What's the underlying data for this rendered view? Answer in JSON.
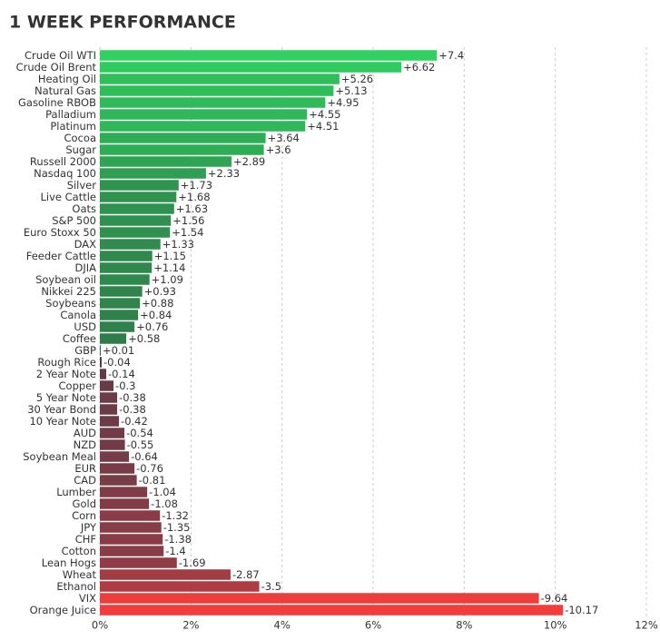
{
  "chart_data": {
    "type": "bar",
    "orientation": "horizontal",
    "title": "1 WEEK PERFORMANCE",
    "categories": [
      "Crude Oil WTI",
      "Crude Oil Brent",
      "Heating Oil",
      "Natural Gas",
      "Gasoline RBOB",
      "Palladium",
      "Platinum",
      "Cocoa",
      "Sugar",
      "Russell 2000",
      "Nasdaq 100",
      "Silver",
      "Live Cattle",
      "Oats",
      "S&P 500",
      "Euro Stoxx 50",
      "DAX",
      "Feeder Cattle",
      "DJIA",
      "Soybean oil",
      "Nikkei 225",
      "Soybeans",
      "Canola",
      "USD",
      "Coffee",
      "GBP",
      "Rough Rice",
      "2 Year Note",
      "Copper",
      "5 Year Note",
      "30 Year Bond",
      "10 Year Note",
      "AUD",
      "NZD",
      "Soybean Meal",
      "EUR",
      "CAD",
      "Lumber",
      "Gold",
      "Corn",
      "JPY",
      "CHF",
      "Cotton",
      "Lean Hogs",
      "Wheat",
      "Ethanol",
      "VIX",
      "Orange Juice"
    ],
    "values": [
      7.4,
      6.62,
      5.26,
      5.13,
      4.95,
      4.55,
      4.51,
      3.64,
      3.6,
      2.89,
      2.33,
      1.73,
      1.68,
      1.63,
      1.56,
      1.54,
      1.33,
      1.15,
      1.14,
      1.09,
      0.93,
      0.88,
      0.84,
      0.76,
      0.58,
      0.01,
      -0.04,
      -0.14,
      -0.3,
      -0.38,
      -0.38,
      -0.42,
      -0.54,
      -0.55,
      -0.64,
      -0.76,
      -0.81,
      -1.04,
      -1.08,
      -1.32,
      -1.35,
      -1.38,
      -1.4,
      -1.69,
      -2.87,
      -3.5,
      -9.64,
      -10.17
    ],
    "value_labels": [
      "+7.4",
      "+6.62",
      "+5.26",
      "+5.13",
      "+4.95",
      "+4.55",
      "+4.51",
      "+3.64",
      "+3.6",
      "+2.89",
      "+2.33",
      "+1.73",
      "+1.68",
      "+1.63",
      "+1.56",
      "+1.54",
      "+1.33",
      "+1.15",
      "+1.14",
      "+1.09",
      "+0.93",
      "+0.88",
      "+0.84",
      "+0.76",
      "+0.58",
      "+0.01",
      "-0.04",
      "-0.14",
      "-0.3",
      "-0.38",
      "-0.38",
      "-0.42",
      "-0.54",
      "-0.55",
      "-0.64",
      "-0.76",
      "-0.81",
      "-1.04",
      "-1.08",
      "-1.32",
      "-1.35",
      "-1.38",
      "-1.4",
      "-1.69",
      "-2.87",
      "-3.5",
      "-9.64",
      "-10.17"
    ],
    "colors": {
      "positive": [
        "#2f5a40",
        "#2fd160"
      ],
      "negative": [
        "#4b3b4b",
        "#f23d3d"
      ]
    },
    "xlim": [
      0,
      12
    ],
    "xticks": [
      {
        "value": 0,
        "label": "0%"
      },
      {
        "value": 2,
        "label": "2%"
      },
      {
        "value": 4,
        "label": "4%"
      },
      {
        "value": 6,
        "label": "6%"
      },
      {
        "value": 8,
        "label": "8%"
      },
      {
        "value": 10,
        "label": "10%"
      },
      {
        "value": 12,
        "label": "12%"
      }
    ],
    "grid": true
  }
}
